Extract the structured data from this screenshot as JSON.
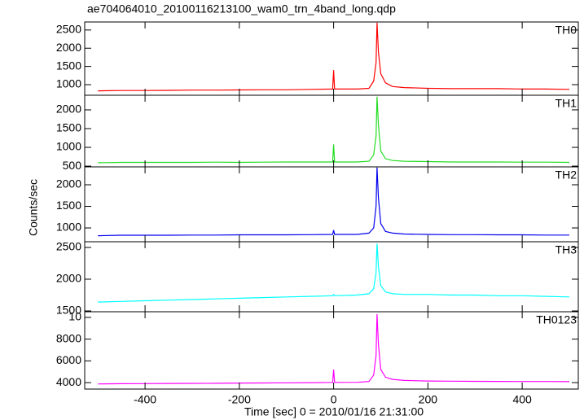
{
  "chart_data": [
    {
      "type": "line",
      "title": "ae704064010_20100116213100_wam0_trn_4band_long.qdp",
      "label": "TH0",
      "color": "#ff0000",
      "x": [
        -500,
        -450,
        -400,
        -350,
        -300,
        -250,
        -200,
        -150,
        -100,
        -50,
        -2,
        0,
        2,
        50,
        75,
        85,
        90,
        92,
        95,
        100,
        110,
        125,
        150,
        200,
        250,
        300,
        350,
        400,
        450,
        500
      ],
      "values": [
        830,
        840,
        840,
        845,
        850,
        850,
        855,
        860,
        860,
        870,
        880,
        1400,
        880,
        880,
        900,
        1100,
        1600,
        2700,
        1900,
        1300,
        1050,
        950,
        920,
        900,
        890,
        890,
        890,
        880,
        880,
        870
      ],
      "xlim": [
        -528,
        519
      ],
      "ylim": [
        710,
        2720
      ],
      "yticks": [
        1000,
        1500,
        2000,
        2500
      ]
    },
    {
      "type": "line",
      "label": "TH1",
      "color": "#22dd22",
      "x": [
        -500,
        -450,
        -400,
        -350,
        -300,
        -250,
        -200,
        -150,
        -100,
        -50,
        -2,
        0,
        2,
        50,
        75,
        85,
        90,
        92,
        95,
        100,
        110,
        125,
        150,
        200,
        250,
        300,
        350,
        400,
        450,
        500
      ],
      "values": [
        590,
        600,
        600,
        600,
        600,
        605,
        600,
        605,
        610,
        610,
        610,
        1080,
        610,
        610,
        630,
        800,
        1300,
        2350,
        1600,
        900,
        700,
        650,
        630,
        620,
        610,
        610,
        610,
        605,
        605,
        600
      ],
      "xlim": [
        -528,
        519
      ],
      "ylim": [
        480,
        2390
      ],
      "yticks": [
        500,
        1000,
        1500,
        2000
      ]
    },
    {
      "type": "line",
      "label": "TH2",
      "color": "#0000ee",
      "ylabel": "Counts/sec",
      "x": [
        -500,
        -450,
        -400,
        -350,
        -300,
        -250,
        -200,
        -150,
        -100,
        -50,
        -2,
        0,
        2,
        50,
        75,
        85,
        90,
        92,
        95,
        100,
        110,
        125,
        150,
        200,
        250,
        300,
        350,
        400,
        450,
        500
      ],
      "values": [
        820,
        830,
        830,
        830,
        835,
        835,
        840,
        840,
        840,
        845,
        850,
        950,
        850,
        850,
        880,
        1000,
        1500,
        2400,
        1700,
        1100,
        920,
        880,
        860,
        850,
        845,
        845,
        840,
        840,
        835,
        835
      ],
      "xlim": [
        -528,
        519
      ],
      "ylim": [
        680,
        2415
      ],
      "yticks": [
        1000,
        1500,
        2000
      ]
    },
    {
      "type": "line",
      "label": "TH3",
      "color": "#00ffff",
      "x": [
        -500,
        -450,
        -400,
        -350,
        -300,
        -250,
        -200,
        -150,
        -100,
        -50,
        -2,
        0,
        2,
        50,
        75,
        85,
        90,
        92,
        95,
        100,
        110,
        125,
        150,
        200,
        250,
        300,
        350,
        400,
        450,
        500
      ],
      "values": [
        1640,
        1650,
        1660,
        1670,
        1680,
        1690,
        1700,
        1710,
        1720,
        1730,
        1740,
        1760,
        1740,
        1750,
        1770,
        1850,
        2100,
        2560,
        2200,
        1900,
        1800,
        1770,
        1760,
        1760,
        1750,
        1750,
        1740,
        1740,
        1730,
        1720
      ],
      "xlim": [
        -528,
        519
      ],
      "ylim": [
        1487,
        2590
      ],
      "yticks": [
        1500,
        2000,
        2500
      ]
    },
    {
      "type": "line",
      "label": "TH0123",
      "color": "#ff00ff",
      "xlabel": "Time [sec] 0 = 2010/01/16 21:31:00",
      "x": [
        -500,
        -450,
        -400,
        -350,
        -300,
        -250,
        -200,
        -150,
        -100,
        -50,
        -2,
        0,
        2,
        50,
        75,
        85,
        90,
        92,
        95,
        100,
        110,
        125,
        150,
        200,
        250,
        300,
        350,
        400,
        450,
        500
      ],
      "values": [
        3880,
        3900,
        3910,
        3920,
        3930,
        3940,
        3960,
        3970,
        3980,
        4000,
        4020,
        5200,
        4020,
        4030,
        4100,
        4700,
        6500,
        10300,
        7500,
        5200,
        4500,
        4300,
        4200,
        4150,
        4130,
        4120,
        4110,
        4100,
        4100,
        4090
      ],
      "xlim": [
        -528,
        519
      ],
      "ylim": [
        3407,
        10519
      ],
      "xticks": [
        -400,
        -200,
        0,
        200,
        400
      ],
      "yticks": [
        4000,
        6000,
        8000,
        {
          "value": 10000,
          "label": "10"
        }
      ]
    }
  ]
}
